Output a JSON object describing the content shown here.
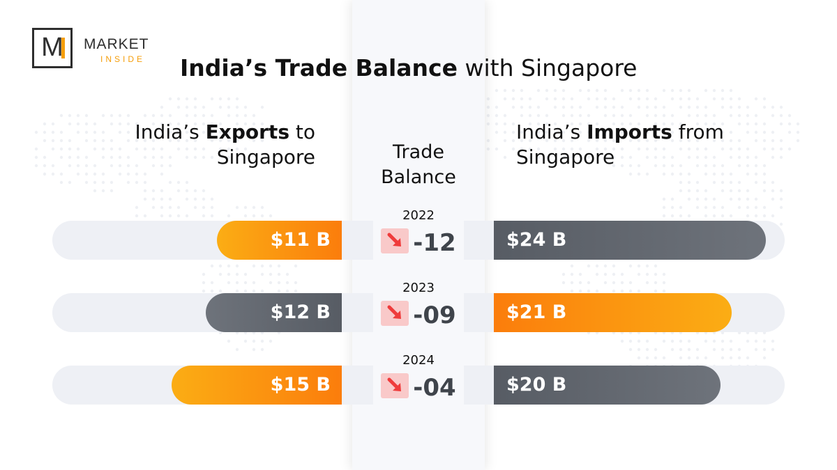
{
  "logo": {
    "word1": "MARKET",
    "word2": "INSIDE",
    "letter": "M"
  },
  "title": {
    "bold": "India’s Trade Balance",
    "rest": " with Singapore"
  },
  "headers": {
    "exports": {
      "pre": "India’s ",
      "bold": "Exports",
      "post": " to",
      "line2": "Singapore"
    },
    "imports": {
      "pre": "India’s ",
      "bold": "Imports",
      "post": " from",
      "line2": "Singapore"
    },
    "balance": {
      "line1": "Trade",
      "line2": "Balance"
    }
  },
  "colors": {
    "orange": "#fb8c10",
    "gray": "#5f646c",
    "negative_badge": "#f9c9c9",
    "arrow": "#ef3b3b"
  },
  "rows": [
    {
      "year": "2022",
      "exports_label": "$11 B",
      "imports_label": "$24 B",
      "balance_label": "-12",
      "exports_color": "orange",
      "imports_color": "gray",
      "trend_icon": "arrow-down-right-icon"
    },
    {
      "year": "2023",
      "exports_label": "$12 B",
      "imports_label": "$21 B",
      "balance_label": "-09",
      "exports_color": "gray",
      "imports_color": "orange",
      "trend_icon": "arrow-down-right-icon"
    },
    {
      "year": "2024",
      "exports_label": "$15 B",
      "imports_label": "$20 B",
      "balance_label": "-04",
      "exports_color": "orange",
      "imports_color": "gray",
      "trend_icon": "arrow-down-right-icon"
    }
  ],
  "chart_data": {
    "type": "bar",
    "categories": [
      "2022",
      "2023",
      "2024"
    ],
    "series": [
      {
        "name": "India’s Exports to Singapore",
        "values": [
          11,
          12,
          15
        ],
        "unit": "$ B"
      },
      {
        "name": "India’s Imports from Singapore",
        "values": [
          24,
          21,
          20
        ],
        "unit": "$ B"
      },
      {
        "name": "Trade Balance",
        "values": [
          -12,
          -9,
          -4
        ]
      }
    ],
    "title": "India’s Trade Balance with Singapore",
    "xlabel": "",
    "ylabel": "",
    "legend": "none",
    "grid": false
  }
}
